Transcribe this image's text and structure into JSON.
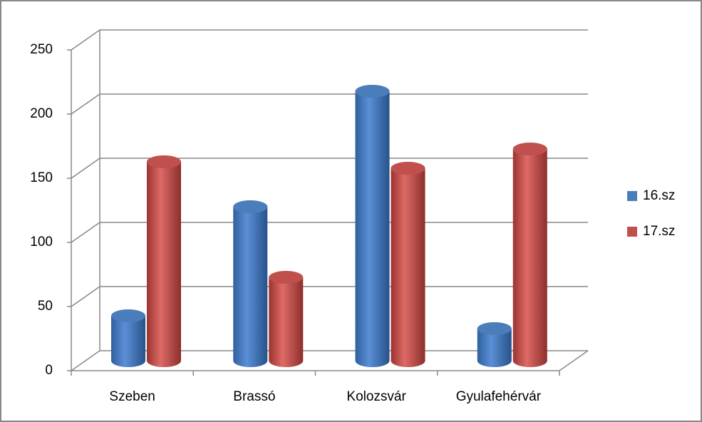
{
  "chart_data": {
    "type": "bar",
    "categories": [
      "Szeben",
      "Brassó",
      "Kolozsvár",
      "Gyulafehérvár"
    ],
    "series": [
      {
        "name": "16.sz",
        "color": "#4a7ebb",
        "values": [
          35,
          120,
          210,
          25
        ]
      },
      {
        "name": "17.sz",
        "color": "#c0504d",
        "values": [
          155,
          65,
          150,
          165
        ]
      }
    ],
    "ylim": [
      0,
      250
    ],
    "yticks": [
      0,
      50,
      100,
      150,
      200,
      250
    ],
    "grid": true,
    "legend": "right"
  }
}
